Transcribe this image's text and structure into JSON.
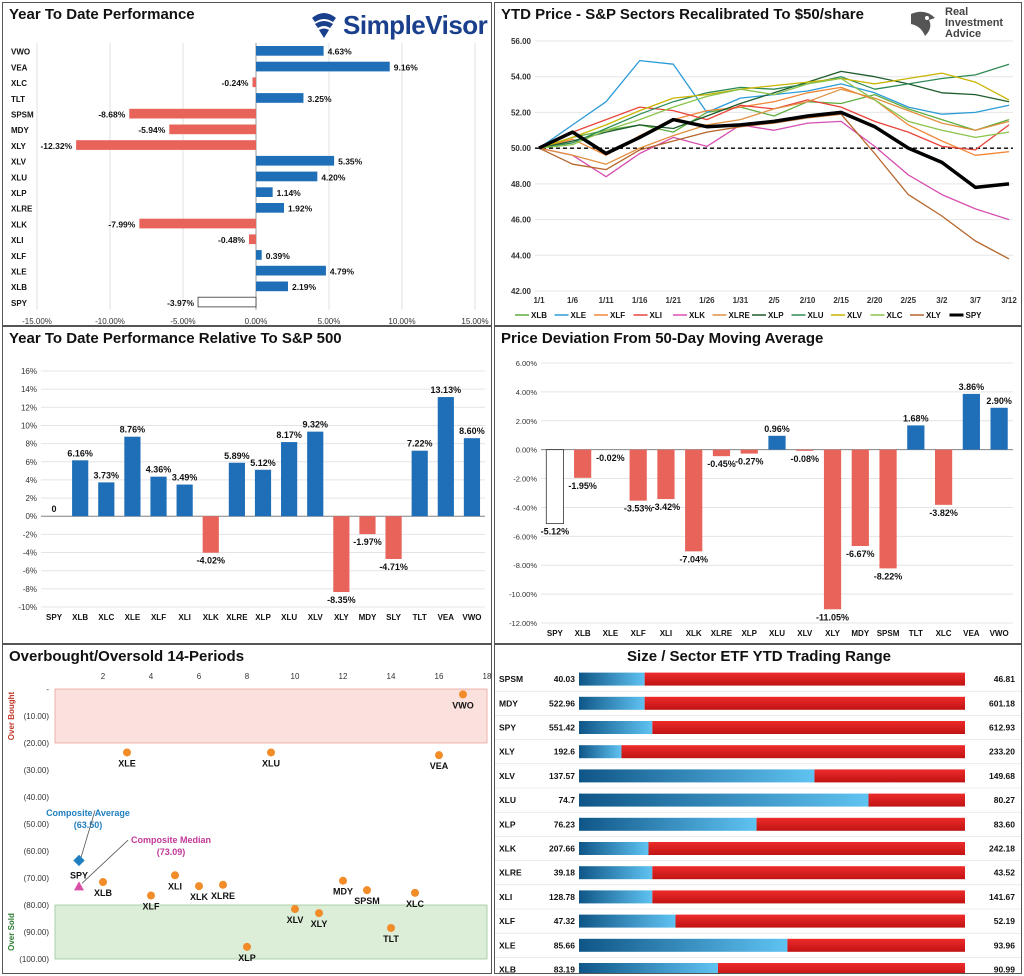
{
  "colors": {
    "blue": "#1f6fb8",
    "red": "#e8645a",
    "spy": "#ffffff"
  },
  "panel_ytd": {
    "title": "Year To Date Performance",
    "brand": "SimpleVisor",
    "chart_data": {
      "type": "bar",
      "orientation": "horizontal",
      "categories": [
        "VWO",
        "VEA",
        "XLC",
        "TLT",
        "SPSM",
        "MDY",
        "XLY",
        "XLV",
        "XLU",
        "XLP",
        "XLRE",
        "XLK",
        "XLI",
        "XLF",
        "XLE",
        "XLB",
        "SPY"
      ],
      "values": [
        4.63,
        9.16,
        -0.24,
        3.25,
        -8.68,
        -5.94,
        -12.32,
        5.35,
        4.2,
        1.14,
        1.92,
        -7.99,
        -0.48,
        0.39,
        4.79,
        2.19,
        -3.97
      ],
      "labels": [
        "4.63%",
        "9.16%",
        "-0.24%",
        "3.25%",
        "-8.68%",
        "-5.94%",
        "-12.32%",
        "5.35%",
        "4.20%",
        "1.14%",
        "1.92%",
        "-7.99%",
        "-0.48%",
        "0.39%",
        "4.79%",
        "2.19%",
        "-3.97%"
      ],
      "xlim": [
        -15,
        15
      ],
      "ticks": [
        -15,
        -10,
        -5,
        0,
        5,
        10,
        15
      ],
      "tick_labels": [
        "-15.00%",
        "-10.00%",
        "-5.00%",
        "0.00%",
        "5.00%",
        "10.00%",
        "15.00%"
      ]
    }
  },
  "panel_price": {
    "title": "YTD Price - S&P Sectors Recalibrated To $50/share",
    "brand_lines": [
      "Real",
      "Investment",
      "Advice"
    ],
    "chart_data": {
      "type": "line",
      "x_tick_labels": [
        "1/1",
        "1/6",
        "1/11",
        "1/16",
        "1/21",
        "1/26",
        "1/31",
        "2/5",
        "2/10",
        "2/15",
        "2/20",
        "2/25",
        "3/2",
        "3/7",
        "3/12"
      ],
      "ylim": [
        42,
        56
      ],
      "y_ticks": [
        42,
        44,
        46,
        48,
        50,
        52,
        54,
        56
      ],
      "y_tick_labels": [
        "42.00",
        "44.00",
        "46.00",
        "48.00",
        "50.00",
        "52.00",
        "54.00",
        "56.00"
      ],
      "baseline": 50,
      "series": [
        {
          "name": "XLB",
          "color": "#5fae3f",
          "values": [
            50,
            50.6,
            51,
            51.3,
            50.9,
            52,
            52.3,
            51.8,
            52.6,
            52.5,
            53,
            52.2,
            51.6,
            51,
            51.6
          ]
        },
        {
          "name": "XLE",
          "color": "#2b9bd7",
          "values": [
            50,
            51.3,
            52.6,
            54.9,
            54.7,
            52,
            52.8,
            53,
            53.2,
            53.6,
            53.1,
            52.3,
            51.9,
            52,
            52.4
          ]
        },
        {
          "name": "XLF",
          "color": "#f0883a",
          "values": [
            50,
            50.5,
            49.6,
            50.7,
            51.6,
            52.1,
            52.3,
            52.6,
            53.1,
            53.4,
            52.7,
            51.3,
            50.4,
            49.6,
            49.8
          ]
        },
        {
          "name": "XLI",
          "color": "#e8443a",
          "values": [
            50,
            50.9,
            51.6,
            52.3,
            52.1,
            51.6,
            52.4,
            52.2,
            52.7,
            52.3,
            51.5,
            50.9,
            50.1,
            49.9,
            51.3
          ]
        },
        {
          "name": "XLK",
          "color": "#d64fb0",
          "values": [
            50,
            49.6,
            48.4,
            49.7,
            50.6,
            50.1,
            51.3,
            51,
            51.4,
            51.5,
            50.1,
            48.5,
            47.4,
            46.6,
            46
          ]
        },
        {
          "name": "XLRE",
          "color": "#e09040",
          "values": [
            50,
            49.6,
            49.1,
            50,
            50.7,
            51.3,
            51.6,
            52.2,
            52.6,
            53.3,
            52.8,
            52.1,
            51.4,
            51,
            51.5
          ]
        },
        {
          "name": "XLP",
          "color": "#1e5c2c",
          "values": [
            50,
            50.4,
            50.9,
            51.3,
            51.1,
            51.8,
            52.5,
            53.1,
            53.7,
            54.3,
            54,
            53.6,
            53.1,
            53,
            52.6
          ]
        },
        {
          "name": "XLU",
          "color": "#2e8b57",
          "values": [
            50,
            50.3,
            51.1,
            51.9,
            52.6,
            53.1,
            53.4,
            53.3,
            53.6,
            54,
            53.3,
            53.6,
            53.9,
            54.1,
            54.7
          ]
        },
        {
          "name": "XLV",
          "color": "#c9b400",
          "values": [
            50,
            50.6,
            51.3,
            52.1,
            52.8,
            53,
            53.3,
            53.5,
            53.7,
            53.9,
            53.6,
            53.9,
            54.2,
            53.7,
            52.7
          ]
        },
        {
          "name": "XLC",
          "color": "#8bc34a",
          "values": [
            50,
            50.2,
            51,
            51.6,
            52.3,
            52.9,
            53.3,
            53,
            53.6,
            53.9,
            52.7,
            51.5,
            51,
            50.6,
            50.9
          ]
        },
        {
          "name": "XLY",
          "color": "#b5652a",
          "values": [
            50,
            49.1,
            48.8,
            49.9,
            50.4,
            50.9,
            51.2,
            51.4,
            51.7,
            51.9,
            49.7,
            47.4,
            46.2,
            44.8,
            43.8
          ]
        },
        {
          "name": "SPY",
          "color": "#000000",
          "values": [
            50,
            50.9,
            49.7,
            50.6,
            51.6,
            51.2,
            51.3,
            51.5,
            51.8,
            52,
            51.2,
            50,
            49.2,
            47.8,
            48
          ]
        }
      ]
    }
  },
  "panel_rel": {
    "title": "Year To Date Performance Relative To S&P 500",
    "chart_data": {
      "type": "bar",
      "categories": [
        "SPY",
        "XLB",
        "XLC",
        "XLE",
        "XLF",
        "XLI",
        "XLK",
        "XLRE",
        "XLP",
        "XLU",
        "XLV",
        "XLY",
        "MDY",
        "SLY",
        "TLT",
        "VEA",
        "VWO"
      ],
      "values": [
        0,
        6.16,
        3.73,
        8.76,
        4.36,
        3.49,
        -4.02,
        5.89,
        5.12,
        8.17,
        9.32,
        -8.35,
        -1.97,
        -4.71,
        7.22,
        13.13,
        8.6
      ],
      "labels": [
        "0",
        "6.16%",
        "3.73%",
        "8.76%",
        "4.36%",
        "3.49%",
        "-4.02%",
        "5.89%",
        "5.12%",
        "8.17%",
        "9.32%",
        "-8.35%",
        "-1.97%",
        "-4.71%",
        "7.22%",
        "13.13%",
        "8.60%"
      ],
      "ylim": [
        -10,
        16
      ],
      "y_ticks": [
        -10,
        -8,
        -6,
        -4,
        -2,
        0,
        2,
        4,
        6,
        8,
        10,
        12,
        14,
        16
      ],
      "y_tick_labels": [
        "-10%",
        "-8%",
        "-6%",
        "-4%",
        "-2%",
        "0%",
        "2%",
        "4%",
        "6%",
        "8%",
        "10%",
        "12%",
        "14%",
        "16%"
      ]
    }
  },
  "panel_dev": {
    "title": "Price Deviation From 50-Day Moving Average",
    "chart_data": {
      "type": "bar",
      "categories": [
        "SPY",
        "XLB",
        "XLE",
        "XLF",
        "XLI",
        "XLK",
        "XLRE",
        "XLP",
        "XLU",
        "XLV",
        "XLY",
        "MDY",
        "SPSM",
        "TLT",
        "XLC",
        "VEA",
        "VWO"
      ],
      "values": [
        -5.12,
        -1.95,
        -0.02,
        -3.53,
        -3.42,
        -7.04,
        -0.45,
        -0.27,
        0.96,
        -0.08,
        -11.05,
        -6.67,
        -8.22,
        1.68,
        -3.82,
        3.86,
        2.9
      ],
      "labels": [
        "-5.12%",
        "-1.95%",
        "-0.02%",
        "-3.53%",
        "-3.42%",
        "-7.04%",
        "-0.45%",
        "-0.27%",
        "0.96%",
        "-0.08%",
        "-11.05%",
        "-6.67%",
        "-8.22%",
        "1.68%",
        "-3.82%",
        "3.86%",
        "2.90%"
      ],
      "ylim": [
        -12,
        6
      ],
      "y_ticks": [
        -12,
        -10,
        -8,
        -6,
        -4,
        -2,
        0,
        2,
        4,
        6
      ],
      "y_tick_labels": [
        "-12.00%",
        "-10.00%",
        "-8.00%",
        "-6.00%",
        "-4.00%",
        "-2.00%",
        "0.00%",
        "2.00%",
        "4.00%",
        "6.00%"
      ]
    }
  },
  "panel_ob": {
    "title": "Overbought/Oversold 14-Periods",
    "chart_data": {
      "type": "scatter",
      "xlim": [
        0,
        18
      ],
      "x_ticks": [
        2,
        4,
        6,
        8,
        10,
        12,
        14,
        16,
        18
      ],
      "x_tick_labels": [
        "2",
        "4",
        "6",
        "8",
        "10",
        "12",
        "14",
        "16",
        "18"
      ],
      "ylim": [
        0,
        100
      ],
      "y_ticks": [
        0,
        10,
        20,
        30,
        40,
        50,
        60,
        70,
        80,
        90,
        100
      ],
      "y_tick_labels": [
        "-",
        "(10.00)",
        "(20.00)",
        "(30.00)",
        "(40.00)",
        "(50.00)",
        "(60.00)",
        "(70.00)",
        "(80.00)",
        "(90.00)",
        "(100.00)"
      ],
      "overbought_zone": [
        0,
        20
      ],
      "oversold_zone": [
        80,
        100
      ],
      "zone_labels": {
        "overbought": "Over Bought",
        "oversold": "Over Sold"
      },
      "points": [
        {
          "name": "VWO",
          "x": 17,
          "y": 2
        },
        {
          "name": "XLE",
          "x": 3,
          "y": 23.5
        },
        {
          "name": "XLU",
          "x": 9,
          "y": 23.5
        },
        {
          "name": "VEA",
          "x": 16,
          "y": 24.5
        },
        {
          "name": "XLB",
          "x": 2,
          "y": 71.5
        },
        {
          "name": "XLF",
          "x": 4,
          "y": 76.5
        },
        {
          "name": "XLI",
          "x": 5,
          "y": 69
        },
        {
          "name": "XLK",
          "x": 6,
          "y": 73
        },
        {
          "name": "XLRE",
          "x": 7,
          "y": 72.5
        },
        {
          "name": "XLP",
          "x": 8,
          "y": 95.5
        },
        {
          "name": "XLV",
          "x": 10,
          "y": 81.5
        },
        {
          "name": "XLY",
          "x": 11,
          "y": 83
        },
        {
          "name": "MDY",
          "x": 12,
          "y": 71
        },
        {
          "name": "SPSM",
          "x": 13,
          "y": 74.5
        },
        {
          "name": "TLT",
          "x": 14,
          "y": 88.5
        },
        {
          "name": "XLC",
          "x": 15,
          "y": 75.5
        },
        {
          "name": "SPY",
          "x": 1,
          "y": 63.5
        }
      ],
      "annotations": {
        "average_label": "Composite Average, (63.50)",
        "average": 63.5,
        "median_label": "Composite Median, (73.09)",
        "median": 73.09
      }
    }
  },
  "panel_range": {
    "title": "Size / Sector ETF YTD Trading Range",
    "chart_data": {
      "type": "range_bar",
      "rows": [
        {
          "name": "SPSM",
          "low": "40.03",
          "high": "46.81",
          "position": 0.17
        },
        {
          "name": "MDY",
          "low": "522.96",
          "high": "601.18",
          "position": 0.17
        },
        {
          "name": "SPY",
          "low": "551.42",
          "high": "612.93",
          "position": 0.19
        },
        {
          "name": "XLY",
          "low": "192.6",
          "high": "233.20",
          "position": 0.11
        },
        {
          "name": "XLV",
          "low": "137.57",
          "high": "149.68",
          "position": 0.61
        },
        {
          "name": "XLU",
          "low": "74.7",
          "high": "80.27",
          "position": 0.75
        },
        {
          "name": "XLP",
          "low": "76.23",
          "high": "83.60",
          "position": 0.46
        },
        {
          "name": "XLK",
          "low": "207.66",
          "high": "242.18",
          "position": 0.18
        },
        {
          "name": "XLRE",
          "low": "39.18",
          "high": "43.52",
          "position": 0.19
        },
        {
          "name": "XLI",
          "low": "128.78",
          "high": "141.67",
          "position": 0.19
        },
        {
          "name": "XLF",
          "low": "47.32",
          "high": "52.19",
          "position": 0.25
        },
        {
          "name": "XLE",
          "low": "85.66",
          "high": "93.96",
          "position": 0.54
        },
        {
          "name": "XLB",
          "low": "83.19",
          "high": "90.99",
          "position": 0.36
        }
      ]
    }
  }
}
